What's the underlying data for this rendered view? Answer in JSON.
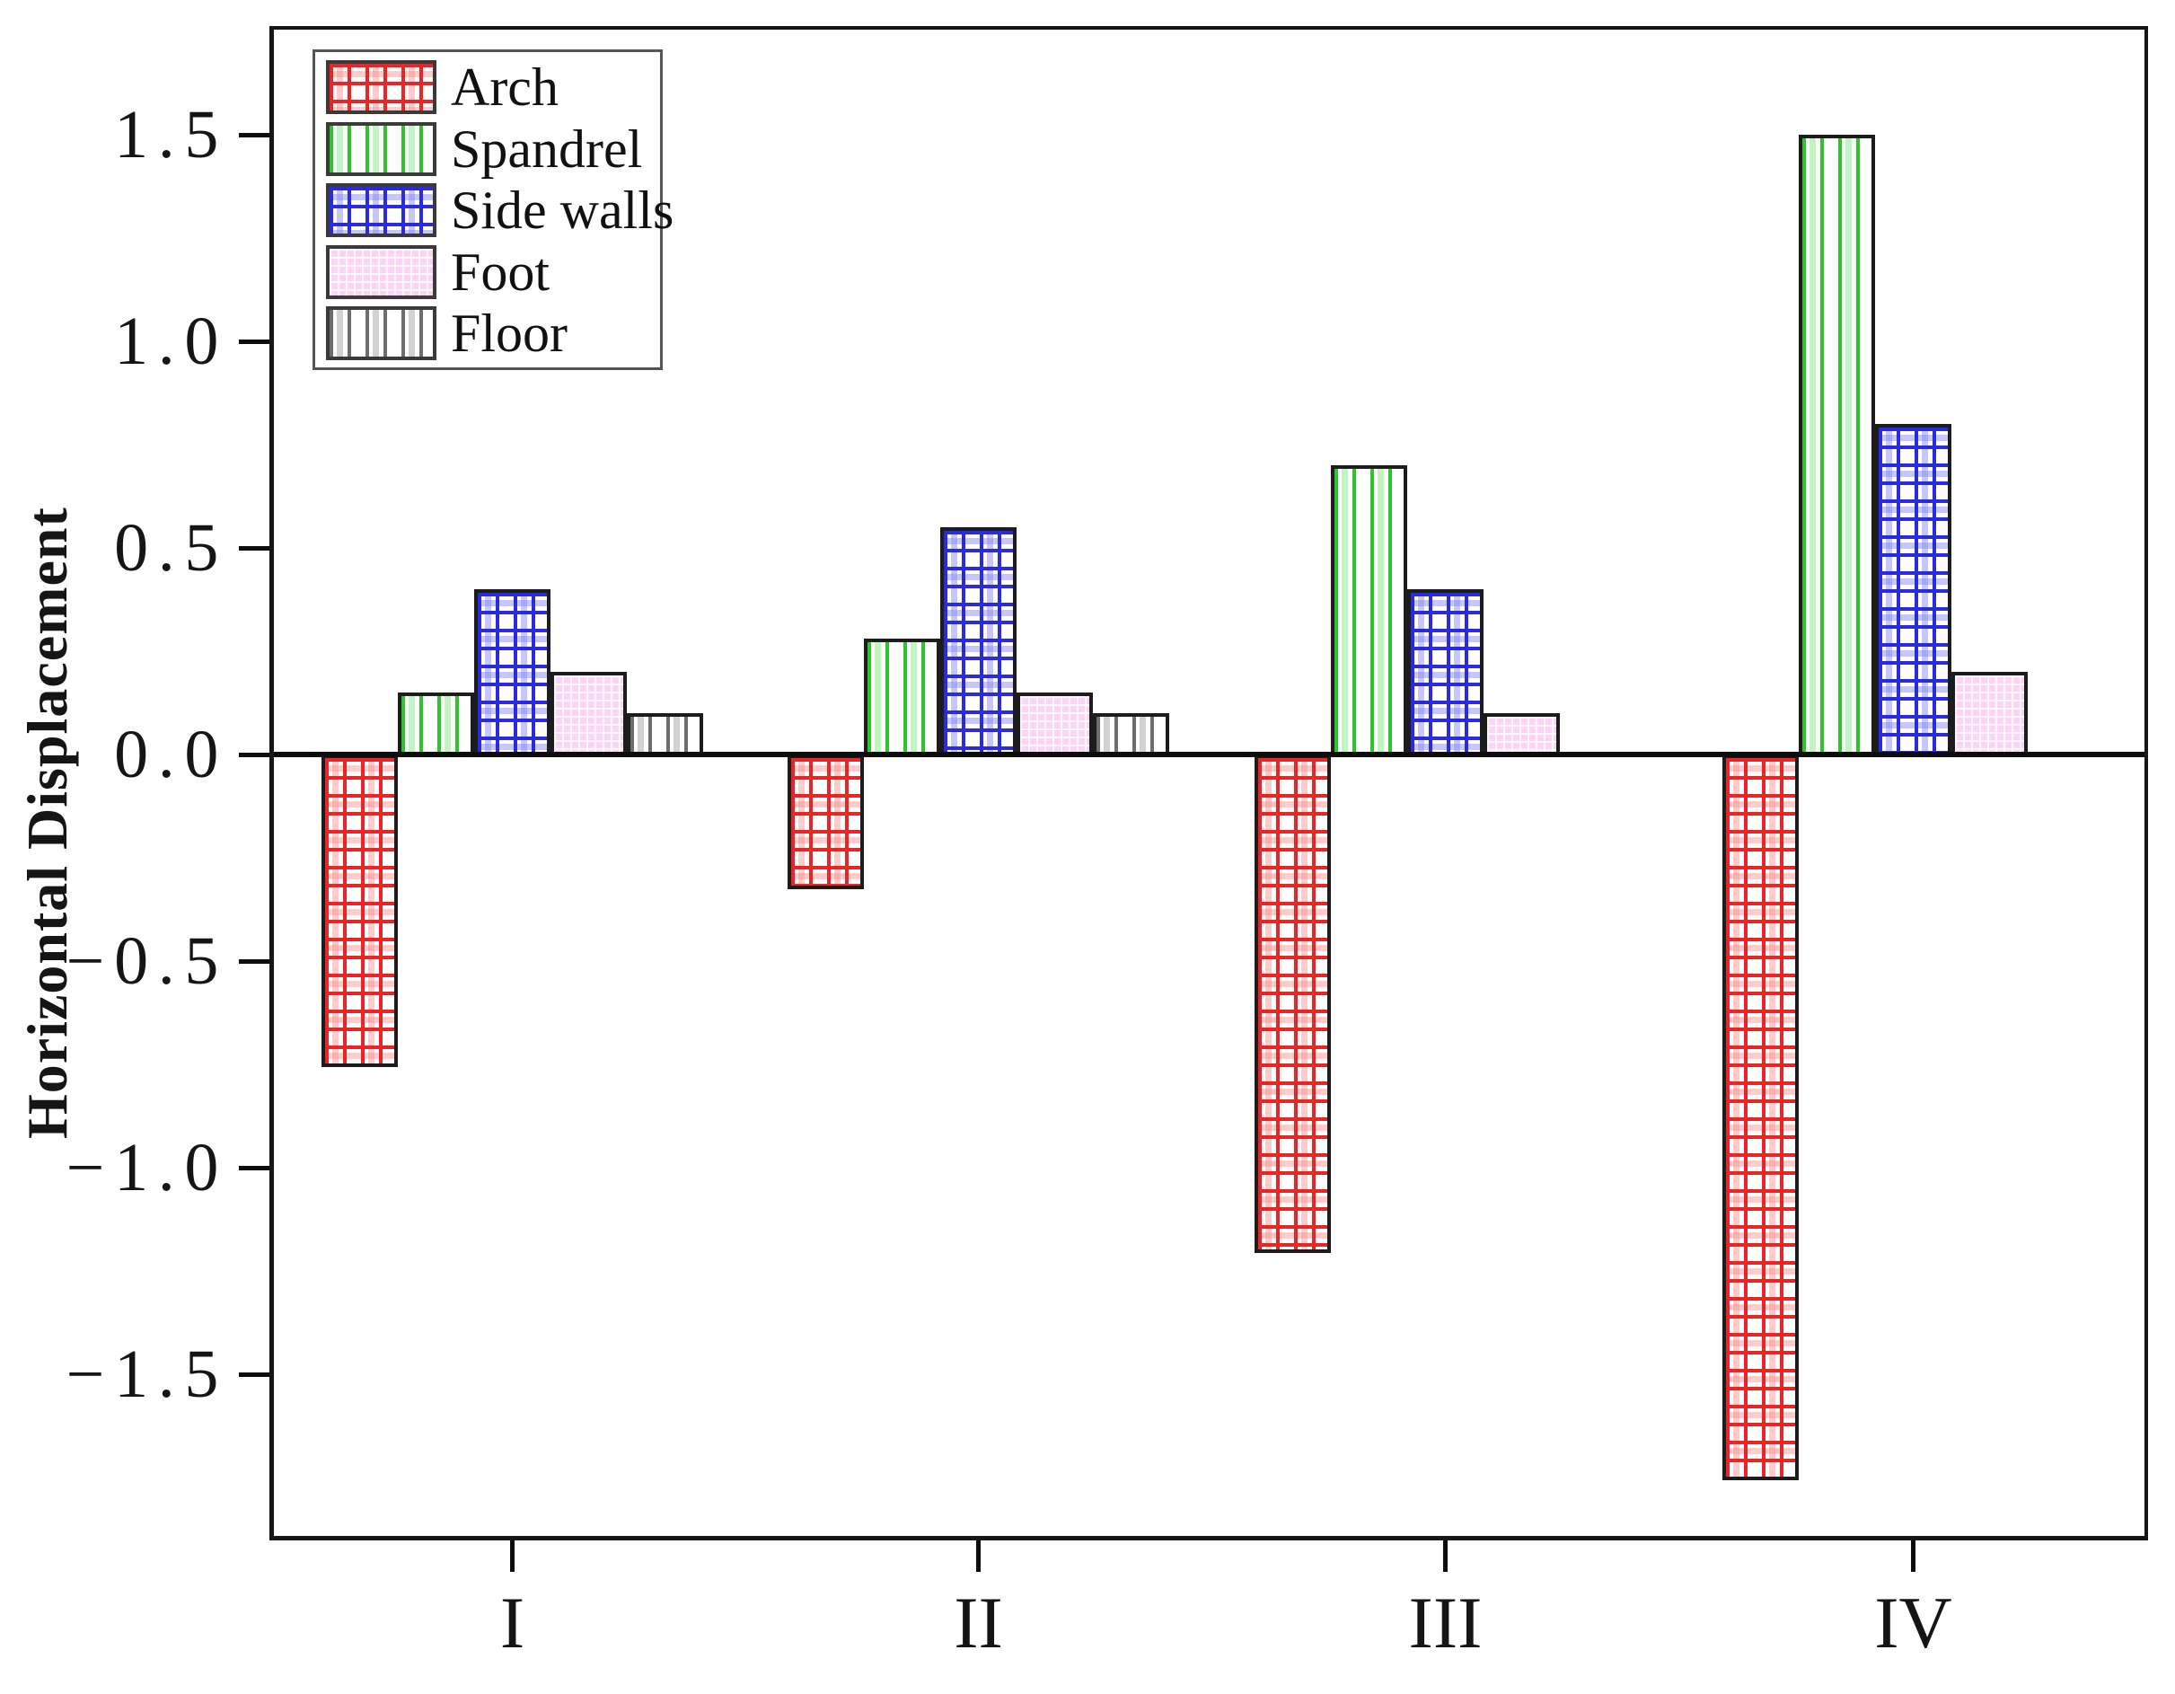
{
  "chart_data": {
    "type": "bar",
    "title": "",
    "xlabel": "",
    "ylabel": "Horizontal Displacement",
    "categories": [
      "I",
      "II",
      "III",
      "IV"
    ],
    "series": [
      {
        "name": "Arch",
        "pattern": "arch",
        "color": "#e92525",
        "values": [
          -0.75,
          -0.32,
          -1.2,
          -1.75
        ]
      },
      {
        "name": "Spandrel",
        "pattern": "spandrel",
        "color": "#2dc42d",
        "values": [
          0.15,
          0.28,
          0.7,
          1.5
        ]
      },
      {
        "name": "Side walls",
        "pattern": "sidewalls",
        "color": "#2a2ae0",
        "values": [
          0.4,
          0.55,
          0.4,
          0.8
        ]
      },
      {
        "name": "Foot",
        "pattern": "foot",
        "color": "#f6c9f0",
        "values": [
          0.2,
          0.15,
          0.1,
          0.2
        ]
      },
      {
        "name": "Floor",
        "pattern": "floor",
        "color": "#6e6e6e",
        "values": [
          0.1,
          0.1,
          0,
          0
        ]
      }
    ],
    "yticks": [
      {
        "v": 1.5,
        "label": "1.5"
      },
      {
        "v": 1.0,
        "label": "1.0"
      },
      {
        "v": 0.5,
        "label": "0.5"
      },
      {
        "v": 0.0,
        "label": "0.0"
      },
      {
        "v": -0.5,
        "label": "−0.5"
      },
      {
        "v": -1.0,
        "label": "−1.0"
      },
      {
        "v": -1.5,
        "label": "−1.5"
      }
    ],
    "ylim": [
      -1.9,
      1.76
    ],
    "grid": false,
    "zero_line": true,
    "legend_position": "top-left",
    "legend_entries": [
      "Arch",
      "Spandrel",
      "Side walls",
      "Foot",
      "Floor"
    ]
  }
}
